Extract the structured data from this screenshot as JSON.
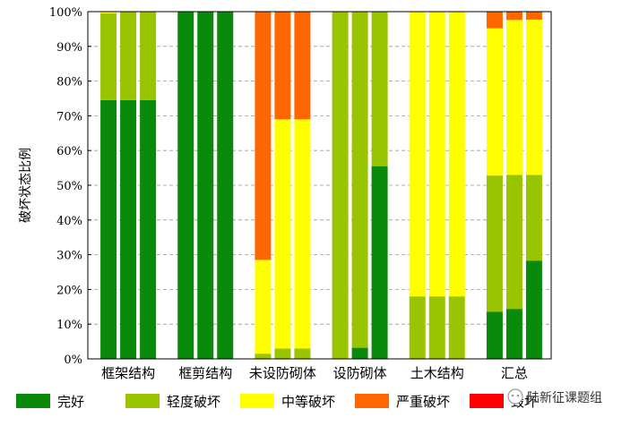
{
  "chart_data": {
    "type": "bar",
    "stacked": true,
    "ylabel": "破坏状态比例",
    "xlabel": "",
    "ylim": [
      0,
      100
    ],
    "yticks": [
      0,
      10,
      20,
      30,
      40,
      50,
      60,
      70,
      80,
      90,
      100
    ],
    "ytick_suffix": "%",
    "grid": "horizontal dashed",
    "legend_position": "bottom",
    "groups": [
      {
        "label": "框架结构",
        "bars": [
          [
            74.5,
            25,
            0.5,
            0,
            0
          ],
          [
            74.5,
            25.5,
            0,
            0,
            0
          ],
          [
            74.5,
            25.5,
            0,
            0,
            0
          ]
        ]
      },
      {
        "label": "框剪结构",
        "bars": [
          [
            100,
            0,
            0,
            0,
            0
          ],
          [
            100,
            0,
            0,
            0,
            0
          ],
          [
            100,
            0,
            0,
            0,
            0
          ]
        ]
      },
      {
        "label": "未设防砌体",
        "bars": [
          [
            0,
            1.5,
            27,
            71.5,
            0
          ],
          [
            0,
            3,
            66,
            31,
            0
          ],
          [
            0,
            3,
            66,
            31,
            0
          ]
        ]
      },
      {
        "label": "设防砌体",
        "bars": [
          [
            0,
            100,
            0,
            0,
            0
          ],
          [
            3.2,
            96.8,
            0,
            0,
            0
          ],
          [
            55.5,
            44.5,
            0,
            0,
            0
          ]
        ]
      },
      {
        "label": "土木结构",
        "bars": [
          [
            0,
            18,
            82,
            0,
            0
          ],
          [
            0,
            18,
            82,
            0,
            0
          ],
          [
            0,
            18,
            82,
            0,
            0
          ]
        ]
      },
      {
        "label": "汇总",
        "bars": [
          [
            13.6,
            39.2,
            42.4,
            4.8,
            0
          ],
          [
            14.4,
            38.6,
            44.6,
            2.4,
            0
          ],
          [
            28.3,
            24.7,
            44.7,
            2.3,
            0
          ]
        ]
      }
    ],
    "series": [
      {
        "name": "完好",
        "color": "#0a8a0a"
      },
      {
        "name": "轻度破坏",
        "color": "#99c400"
      },
      {
        "name": "中等破坏",
        "color": "#ffff00"
      },
      {
        "name": "严重破坏",
        "color": "#ff6600"
      },
      {
        "name": "毁坏",
        "color": "#ff0000"
      }
    ]
  },
  "watermark": {
    "text": "陆新征课题组",
    "icon": "wechat-icon"
  },
  "colors": {
    "axis": "#000000",
    "grid": "#999999"
  }
}
